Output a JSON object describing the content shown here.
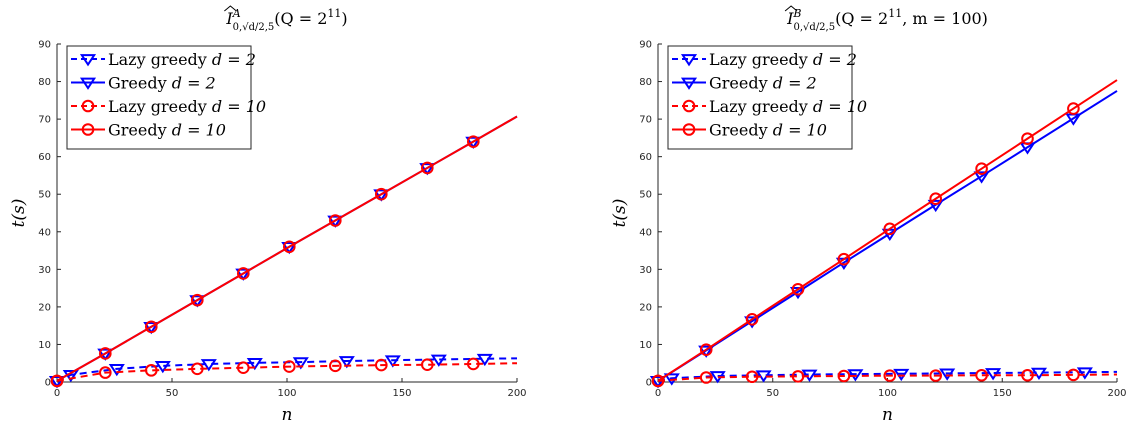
{
  "chart_data": [
    {
      "type": "line",
      "title": "Î^A_{0,√d/2,5}(Q = 2^11)",
      "title_parts": {
        "hat": "I",
        "sup": "A",
        "sub": "0,√d/2,5",
        "args": "(Q = 2",
        "exp": "11",
        "close": ")"
      },
      "xlabel": "n",
      "ylabel": "t(s)",
      "xlim": [
        0,
        200
      ],
      "ylim": [
        0,
        90
      ],
      "xticks": [
        "0",
        "50",
        "100",
        "150",
        "200"
      ],
      "yticks": [
        "0",
        "10",
        "20",
        "30",
        "40",
        "50",
        "60",
        "70",
        "80",
        "90"
      ],
      "grid": false,
      "legend_position": "top-left",
      "series": [
        {
          "name": "Lazy greedy d = 2",
          "label_text": "Lazy greedy ",
          "label_var": "d = 2",
          "color": "#0000ff",
          "linestyle": "dashed",
          "marker": "triangle-down",
          "x": [
            0,
            6,
            26,
            46,
            66,
            86,
            106,
            126,
            146,
            166,
            186,
            200
          ],
          "y": [
            0.3,
            1.9,
            3.5,
            4.3,
            4.8,
            5.1,
            5.3,
            5.6,
            5.8,
            6.0,
            6.2,
            6.3
          ]
        },
        {
          "name": "Greedy d = 2",
          "label_text": "Greedy ",
          "label_var": "d = 2",
          "color": "#0000ff",
          "linestyle": "solid",
          "marker": "triangle-down",
          "x": [
            0,
            21,
            41,
            61,
            81,
            101,
            121,
            141,
            161,
            181,
            200
          ],
          "y": [
            0.3,
            7.6,
            14.7,
            21.8,
            28.9,
            36.0,
            43.0,
            50.0,
            57.0,
            64.0,
            70.7
          ]
        },
        {
          "name": "Lazy greedy d = 10",
          "label_text": "Lazy greedy ",
          "label_var": "d = 10",
          "color": "#ff0000",
          "linestyle": "dashed",
          "marker": "circle",
          "x": [
            0,
            21,
            41,
            61,
            81,
            101,
            121,
            141,
            161,
            181,
            200
          ],
          "y": [
            0.3,
            2.5,
            3.1,
            3.5,
            3.8,
            4.1,
            4.3,
            4.5,
            4.6,
            4.8,
            5.0
          ]
        },
        {
          "name": "Greedy d = 10",
          "label_text": "Greedy ",
          "label_var": "d = 10",
          "color": "#ff0000",
          "linestyle": "solid",
          "marker": "circle",
          "x": [
            0,
            21,
            41,
            61,
            81,
            101,
            121,
            141,
            161,
            181,
            200
          ],
          "y": [
            0.3,
            7.6,
            14.7,
            21.8,
            28.9,
            36.0,
            43.0,
            50.0,
            57.0,
            64.0,
            70.7
          ]
        }
      ]
    },
    {
      "type": "line",
      "title": "Î^B_{0,√d/2,5}(Q = 2^11, m = 100)",
      "title_parts": {
        "hat": "I",
        "sup": "B",
        "sub": "0,√d/2,5",
        "args": "(Q = 2",
        "exp": "11",
        "close": ", m = 100)"
      },
      "xlabel": "n",
      "ylabel": "t(s)",
      "xlim": [
        0,
        200
      ],
      "ylim": [
        0,
        90
      ],
      "xticks": [
        "0",
        "50",
        "100",
        "150",
        "200"
      ],
      "yticks": [
        "0",
        "10",
        "20",
        "30",
        "40",
        "50",
        "60",
        "70",
        "80",
        "90"
      ],
      "grid": false,
      "legend_position": "top-left",
      "series": [
        {
          "name": "Lazy greedy d = 2",
          "label_text": "Lazy greedy ",
          "label_var": "d = 2",
          "color": "#0000ff",
          "linestyle": "dashed",
          "marker": "triangle-down",
          "x": [
            0,
            6,
            26,
            46,
            66,
            86,
            106,
            126,
            146,
            166,
            186,
            200
          ],
          "y": [
            0.3,
            1.0,
            1.6,
            1.8,
            2.0,
            2.1,
            2.2,
            2.3,
            2.4,
            2.5,
            2.6,
            2.7
          ]
        },
        {
          "name": "Greedy d = 2",
          "label_text": "Greedy ",
          "label_var": "d = 2",
          "color": "#0000ff",
          "linestyle": "solid",
          "marker": "triangle-down",
          "x": [
            0,
            21,
            41,
            61,
            81,
            101,
            121,
            141,
            161,
            181,
            200
          ],
          "y": [
            0.3,
            8.4,
            16.2,
            24.0,
            31.8,
            39.5,
            47.2,
            54.8,
            62.5,
            70.2,
            77.5
          ]
        },
        {
          "name": "Lazy greedy d = 10",
          "label_text": "Lazy greedy ",
          "label_var": "d = 10",
          "color": "#ff0000",
          "linestyle": "dashed",
          "marker": "circle",
          "x": [
            0,
            21,
            41,
            61,
            81,
            101,
            121,
            141,
            161,
            181,
            200
          ],
          "y": [
            0.3,
            1.2,
            1.4,
            1.5,
            1.6,
            1.7,
            1.7,
            1.8,
            1.8,
            1.9,
            2.0
          ]
        },
        {
          "name": "Greedy d = 10",
          "label_text": "Greedy ",
          "label_var": "d = 10",
          "color": "#ff0000",
          "linestyle": "solid",
          "marker": "circle",
          "x": [
            0,
            21,
            41,
            61,
            81,
            101,
            121,
            141,
            161,
            181,
            200
          ],
          "y": [
            0.3,
            8.6,
            16.7,
            24.7,
            32.7,
            40.8,
            48.8,
            56.8,
            64.8,
            72.8,
            80.4
          ]
        }
      ]
    }
  ]
}
